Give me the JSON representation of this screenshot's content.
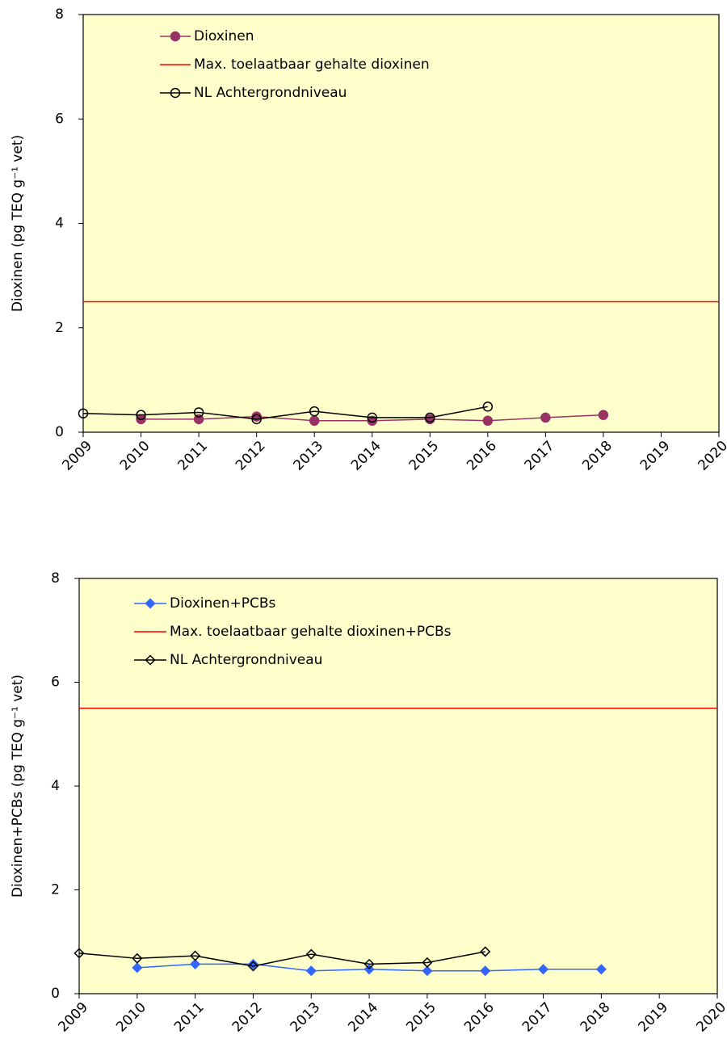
{
  "chart_data": [
    {
      "type": "line",
      "ylabel": "Dioxinen (pg TEQ g⁻¹ vet)",
      "xlim": [
        2009,
        2020
      ],
      "xticks": [
        2009,
        2010,
        2011,
        2012,
        2013,
        2014,
        2015,
        2016,
        2017,
        2018,
        2019,
        2020
      ],
      "ylim": [
        0,
        8
      ],
      "yticks": [
        0,
        2,
        4,
        6,
        8
      ],
      "background": "#ffffcc",
      "legend": "upper left",
      "series": [
        {
          "name": "Dioxinen",
          "color": "#993366",
          "marker": "circle",
          "filled": true,
          "x": [
            2010,
            2011,
            2012,
            2013,
            2014,
            2015,
            2016,
            2017,
            2018
          ],
          "values": [
            0.25,
            0.25,
            0.3,
            0.22,
            0.22,
            0.25,
            0.22,
            0.28,
            0.33
          ]
        },
        {
          "name": "Max. toelaatbaar gehalte dioxinen",
          "color": "#ff0000",
          "marker": "none",
          "filled": false,
          "x": [
            2009,
            2020
          ],
          "values": [
            2.5,
            2.5
          ]
        },
        {
          "name": "NL Achtergrondniveau",
          "color": "#000000",
          "marker": "circle",
          "filled": false,
          "x": [
            2009,
            2010,
            2011,
            2012,
            2013,
            2014,
            2015,
            2016
          ],
          "values": [
            0.36,
            0.33,
            0.38,
            0.25,
            0.4,
            0.28,
            0.28,
            0.49
          ]
        }
      ]
    },
    {
      "type": "line",
      "ylabel": "Dioxinen+PCBs (pg TEQ g⁻¹ vet)",
      "xlim": [
        2009,
        2020
      ],
      "xticks": [
        2009,
        2010,
        2011,
        2012,
        2013,
        2014,
        2015,
        2016,
        2017,
        2018,
        2019,
        2020
      ],
      "ylim": [
        0,
        8
      ],
      "yticks": [
        0,
        2,
        4,
        6,
        8
      ],
      "background": "#ffffcc",
      "legend": "upper left",
      "series": [
        {
          "name": "Dioxinen+PCBs",
          "color": "#3366ff",
          "marker": "diamond",
          "filled": true,
          "x": [
            2010,
            2011,
            2012,
            2013,
            2014,
            2015,
            2016,
            2017,
            2018
          ],
          "values": [
            0.5,
            0.57,
            0.57,
            0.44,
            0.47,
            0.44,
            0.44,
            0.47,
            0.47
          ]
        },
        {
          "name": "Max. toelaatbaar gehalte dioxinen+PCBs",
          "color": "#ff0000",
          "marker": "none",
          "filled": false,
          "x": [
            2009,
            2020
          ],
          "values": [
            5.5,
            5.5
          ]
        },
        {
          "name": "NL Achtergrondniveau",
          "color": "#000000",
          "marker": "diamond",
          "filled": false,
          "x": [
            2009,
            2010,
            2011,
            2012,
            2013,
            2014,
            2015,
            2016
          ],
          "values": [
            0.78,
            0.68,
            0.73,
            0.53,
            0.76,
            0.57,
            0.6,
            0.81
          ]
        }
      ]
    }
  ]
}
